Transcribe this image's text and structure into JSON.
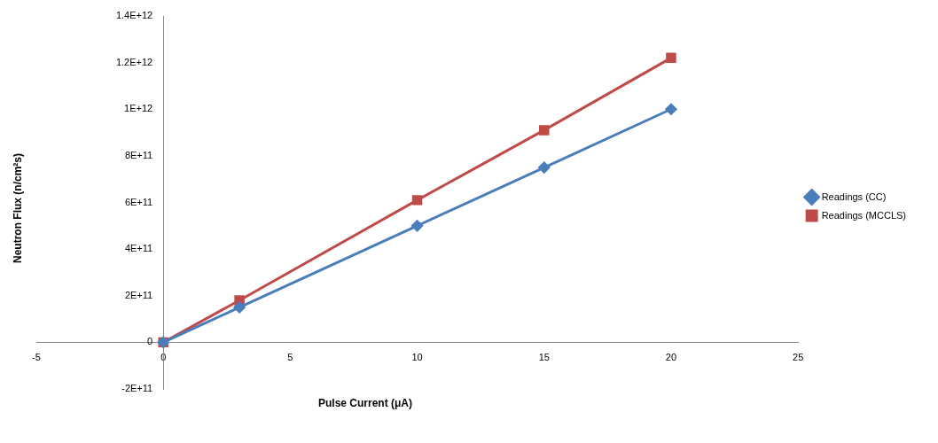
{
  "chart_data": {
    "type": "line",
    "xlabel": "Pulse Current (μA)",
    "ylabel": "Neutron Flux (n/cm²s)",
    "x": [
      0,
      3,
      10,
      15,
      20
    ],
    "series": [
      {
        "name": "Readings (CC)",
        "color": "#4a7ebb",
        "marker": "diamond",
        "values": [
          0,
          150000000000.0,
          500000000000.0,
          750000000000.0,
          1000000000000.0
        ]
      },
      {
        "name": "Readings (MCCLS)",
        "color": "#be4b48",
        "marker": "square",
        "values": [
          0,
          180000000000.0,
          610000000000.0,
          910000000000.0,
          1220000000000.0
        ]
      }
    ],
    "xlim": [
      -5,
      25
    ],
    "xticks": [
      -5,
      0,
      5,
      10,
      15,
      20,
      25
    ],
    "ylim": [
      -200000000000.0,
      1400000000000.0
    ],
    "yticks": [
      {
        "value": -200000000000.0,
        "label": "-2E+11"
      },
      {
        "value": 0,
        "label": "0"
      },
      {
        "value": 200000000000.0,
        "label": "2E+11"
      },
      {
        "value": 400000000000.0,
        "label": "4E+11"
      },
      {
        "value": 600000000000.0,
        "label": "6E+11"
      },
      {
        "value": 800000000000.0,
        "label": "8E+11"
      },
      {
        "value": 1000000000000.0,
        "label": "1E+12"
      },
      {
        "value": 1200000000000.0,
        "label": "1.2E+12"
      },
      {
        "value": 1400000000000.0,
        "label": "1.4E+12"
      }
    ],
    "grid": false,
    "legend": "right",
    "line_style": "solid"
  }
}
